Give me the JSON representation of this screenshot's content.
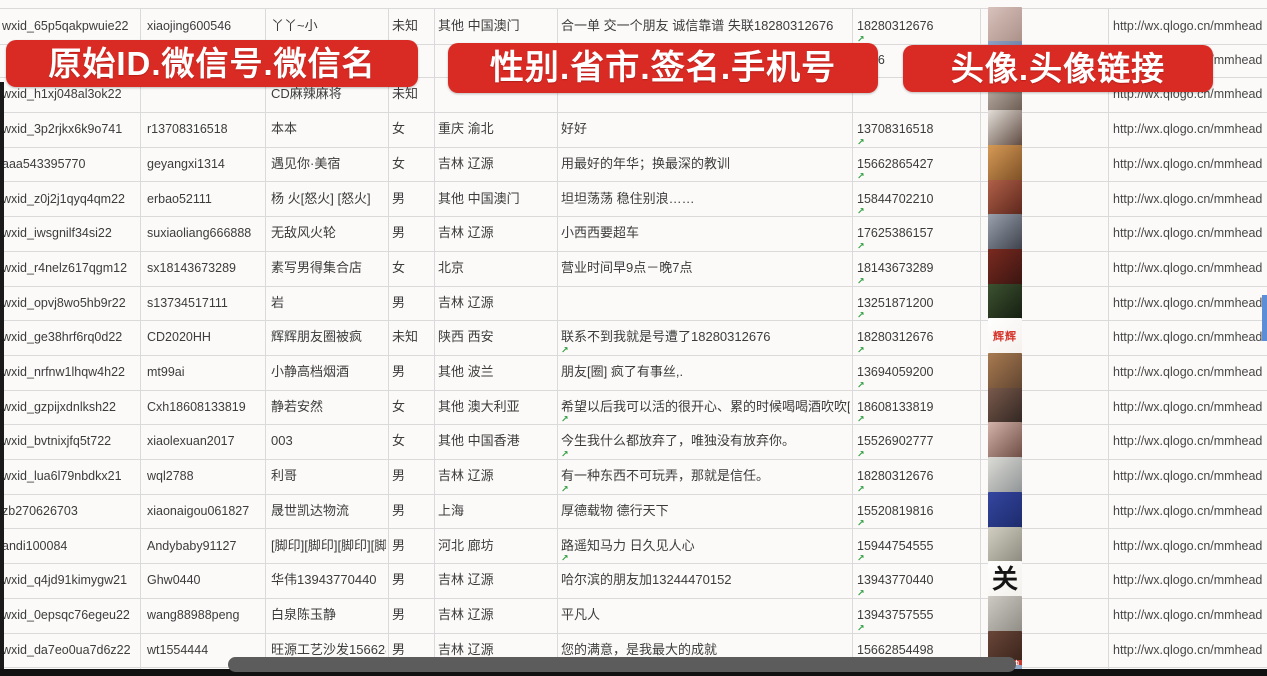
{
  "annotations": {
    "banner_left": "原始ID.微信号.微信名",
    "banner_middle": "性别.省市.签名.手机号",
    "banner_right": "头像.头像链接"
  },
  "colors": {
    "banner_red": "#d92b24",
    "marker_green": "#2f9e3f",
    "gridline": "#dadada",
    "scrollbar_thumb": "#5c5c5c",
    "bottom_bar": "#111111",
    "cell_text": "#3c3c3c"
  },
  "table": {
    "columns": [
      "原始ID",
      "微信号",
      "微信名",
      "性别",
      "省市",
      "签名",
      "手机号",
      "头像",
      "头像链接"
    ],
    "rows": [
      {
        "wxid": "wxid_65p5qakpwuie22",
        "account": "xiaojing600546",
        "name": "丫丫~小",
        "gender": "未知",
        "region": "其他 中国澳门",
        "signature": "合一单 交一个朋友 诚信靠谱 失联18280312676",
        "phone": "18280312676",
        "link": "http://wx.qlogo.cn/mmhead",
        "markers": [
          "phone"
        ],
        "avatar": {
          "desc": "girl selfie photo",
          "colors": [
            "#d9c2bc",
            "#a98f86"
          ]
        }
      },
      {
        "wxid": "",
        "account": "",
        "name": "",
        "gender": "",
        "region": "",
        "signature": "",
        "phone": "5386",
        "link": "http://wx.qlogo.cn/mmhead",
        "markers": [],
        "avatar": {
          "desc": "avatar mostly hidden by banner",
          "colors": [
            "#8fa0c4",
            "#5a6a94"
          ]
        }
      },
      {
        "wxid": "wxid_h1xj048al3ok22",
        "account": "",
        "name": "CD麻辣麻将",
        "gender": "未知",
        "region": "",
        "signature": "",
        "phone": "",
        "link": "http://wx.qlogo.cn/mmhead",
        "markers": [],
        "avatar": {
          "desc": "girl photo",
          "colors": [
            "#c7beb4",
            "#6a5a50"
          ]
        }
      },
      {
        "wxid": "wxid_3p2rjkx6k9o741",
        "account": "r13708316518",
        "name": "本本",
        "gender": "女",
        "region": "重庆 渝北",
        "signature": "好好",
        "phone": "13708316518",
        "link": "http://wx.qlogo.cn/mmhead",
        "markers": [
          "phone"
        ],
        "avatar": {
          "desc": "girl with long dark hair",
          "colors": [
            "#e3ded8",
            "#5a463c"
          ]
        }
      },
      {
        "wxid": "aaa543395770",
        "account": "geyangxi1314",
        "name": "遇见你·美宿",
        "gender": "女",
        "region": "吉林 辽源",
        "signature": "用最好的年华；换最深的教训",
        "phone": "15662865427",
        "link": "http://wx.qlogo.cn/mmhead",
        "markers": [
          "phone"
        ],
        "avatar": {
          "desc": "orange flowers",
          "colors": [
            "#d79a56",
            "#7a4e24"
          ]
        }
      },
      {
        "wxid": "wxid_z0j2j1qyq4qm22",
        "account": "erbao52111",
        "name": "杨 火[怒火] [怒火]",
        "gender": "男",
        "region": "其他 中国澳门",
        "signature": "坦坦荡荡 稳住别浪……",
        "phone": "15844702210",
        "link": "http://wx.qlogo.cn/mmhead",
        "markers": [
          "phone"
        ],
        "avatar": {
          "desc": "group of figurines",
          "colors": [
            "#b06048",
            "#59241a"
          ]
        }
      },
      {
        "wxid": "wxid_iwsgnilf34si22",
        "account": "suxiaoliang666888",
        "name": "无敌风火轮",
        "gender": "男",
        "region": "吉林 辽源",
        "signature": "小西西要超车",
        "phone": "17625386157",
        "link": "http://wx.qlogo.cn/mmhead",
        "markers": [
          "phone"
        ],
        "avatar": {
          "desc": "child in car seat",
          "colors": [
            "#9aa2ae",
            "#3a3e48"
          ]
        }
      },
      {
        "wxid": "wxid_r4nelz617qgm12",
        "account": "sx18143673289",
        "name": "素写男得集合店",
        "gender": "女",
        "region": "北京",
        "signature": "营业时间早9点－晚7点",
        "phone": "18143673289",
        "link": "http://wx.qlogo.cn/mmhead",
        "markers": [
          "phone"
        ],
        "avatar": {
          "desc": "dark red storefront",
          "colors": [
            "#7a2a20",
            "#381410"
          ]
        }
      },
      {
        "wxid": "wxid_opvj8wo5hb9r22",
        "account": "s13734517111",
        "name": "岩",
        "gender": "男",
        "region": "吉林 辽源",
        "signature": "",
        "phone": "13251871200",
        "link": "http://wx.qlogo.cn/mmhead",
        "markers": [
          "phone"
        ],
        "avatar": {
          "desc": "dark green scene",
          "colors": [
            "#3c5230",
            "#141c10"
          ]
        }
      },
      {
        "wxid": "wxid_ge38hrf6rq0d22",
        "account": "CD2020HH",
        "name": "辉辉朋友圈被疯",
        "gender": "未知",
        "region": "陕西 西安",
        "signature": "联系不到我就是号遭了18280312676",
        "phone": "18280312676",
        "link": "http://wx.qlogo.cn/mmhead",
        "markers": [
          "phone",
          "signature"
        ],
        "avatar": {
          "desc": "white avatar with red name",
          "colors": [
            "#ffffff",
            "#f4f0ec"
          ],
          "text": "辉辉",
          "text_color": "#d6352c",
          "style": "style-redname"
        }
      },
      {
        "wxid": "wxid_nrfnw1lhqw4h22",
        "account": "mt99ai",
        "name": "小静高档烟酒",
        "gender": "男",
        "region": "其他 波兰",
        "signature": "朋友[圈] 疯了有事丝,.",
        "phone": "13694059200",
        "link": "http://wx.qlogo.cn/mmhead",
        "markers": [
          "phone"
        ],
        "avatar": {
          "desc": "girl with sunglasses outdoors",
          "colors": [
            "#a87a50",
            "#5f4430"
          ]
        }
      },
      {
        "wxid": "wxid_gzpijxdnlksh22",
        "account": "Cxh18608133819",
        "name": "静若安然",
        "gender": "女",
        "region": "其他 澳大利亚",
        "signature": "希望以后我可以活的很开心、累的时候喝喝酒吹吹[",
        "phone": "18608133819",
        "link": "http://wx.qlogo.cn/mmhead",
        "markers": [
          "phone",
          "signature"
        ],
        "avatar": {
          "desc": "girl selfie in car",
          "colors": [
            "#7a5a4c",
            "#2e2420"
          ]
        }
      },
      {
        "wxid": "wxid_bvtnixjfq5t722",
        "account": "xiaolexuan2017",
        "name": "003",
        "gender": "女",
        "region": "其他 中国香港",
        "signature": "今生我什么都放弃了，唯独没有放弃你。",
        "phone": "15526902777",
        "link": "http://wx.qlogo.cn/mmhead",
        "markers": [
          "phone",
          "signature"
        ],
        "avatar": {
          "desc": "girl selfie close-up",
          "colors": [
            "#d4b4aa",
            "#6a4a40"
          ]
        }
      },
      {
        "wxid": "wxid_lua6l79nbdkx21",
        "account": "wql2788",
        "name": "利哥",
        "gender": "男",
        "region": "吉林 辽源",
        "signature": "有一种东西不可玩弄，那就是信任。",
        "phone": "18280312676",
        "link": "http://wx.qlogo.cn/mmhead",
        "markers": [
          "phone",
          "signature"
        ],
        "avatar": {
          "desc": "person with white hood",
          "colors": [
            "#dcdcd6",
            "#8e9294"
          ]
        }
      },
      {
        "wxid": "zb270626703",
        "account": "xiaonaigou061827",
        "name": "晟世凯达物流",
        "gender": "男",
        "region": "上海",
        "signature": "厚德载物 德行天下",
        "phone": "15520819816",
        "link": "http://wx.qlogo.cn/mmhead",
        "markers": [
          "phone"
        ],
        "avatar": {
          "desc": "blue logo with QR code",
          "colors": [
            "#3446a0",
            "#1c2a6a"
          ]
        }
      },
      {
        "wxid": "andi100084",
        "account": "Andybaby91127",
        "name": "[脚印][脚印][脚印][脚印]",
        "gender": "男",
        "region": "河北 廊坊",
        "signature": "路遥知马力 日久见人心",
        "phone": "15944754555",
        "link": "http://wx.qlogo.cn/mmhead",
        "markers": [
          "phone",
          "signature"
        ],
        "avatar": {
          "desc": "person standing outdoors",
          "colors": [
            "#d2cec2",
            "#8a887c"
          ]
        }
      },
      {
        "wxid": "wxid_q4jd91kimygw21",
        "account": "Ghw0440",
        "name": "华伟13943770440",
        "gender": "男",
        "region": "吉林 辽源",
        "signature": "哈尔滨的朋友加13244470152",
        "phone": "13943770440",
        "link": "http://wx.qlogo.cn/mmhead",
        "markers": [
          "phone"
        ],
        "avatar": {
          "desc": "black calligraphy character on white",
          "colors": [
            "#ffffff",
            "#f2f0ea"
          ],
          "text": "关",
          "text_color": "#141414",
          "style": "style-calligraphy"
        }
      },
      {
        "wxid": "wxid_0epsqc76egeu22",
        "account": "wang88988peng",
        "name": "白泉陈玉静",
        "gender": "男",
        "region": "吉林 辽源",
        "signature": "平凡人",
        "phone": "13943757555",
        "link": "http://wx.qlogo.cn/mmhead",
        "markers": [
          "phone"
        ],
        "avatar": {
          "desc": "person in gray clothes",
          "colors": [
            "#cdc9c3",
            "#8e8a84"
          ]
        }
      },
      {
        "wxid": "wxid_da7eo0ua7d6z22",
        "account": "wt1554444",
        "name": "旺源工艺沙发15662854",
        "gender": "男",
        "region": "吉林 辽源",
        "signature": "您的满意，是我最大的成就",
        "phone": "15662854498",
        "link": "http://wx.qlogo.cn/mmhead",
        "markers": [
          "phone",
          "signature"
        ],
        "avatar": {
          "desc": "dark photo with red China banner",
          "colors": [
            "#6a4638",
            "#342018"
          ],
          "text": "中国加油",
          "text_color": "#ffffff",
          "style": "style-band"
        }
      },
      {
        "wxid": "",
        "account": "",
        "name": "",
        "gender": "",
        "region": "",
        "signature": "",
        "phone": "",
        "link": "",
        "markers": [],
        "avatar": {
          "desc": "partially visible blue avatar",
          "colors": [
            "#a8bcd4",
            "#7090b4"
          ]
        }
      }
    ]
  }
}
